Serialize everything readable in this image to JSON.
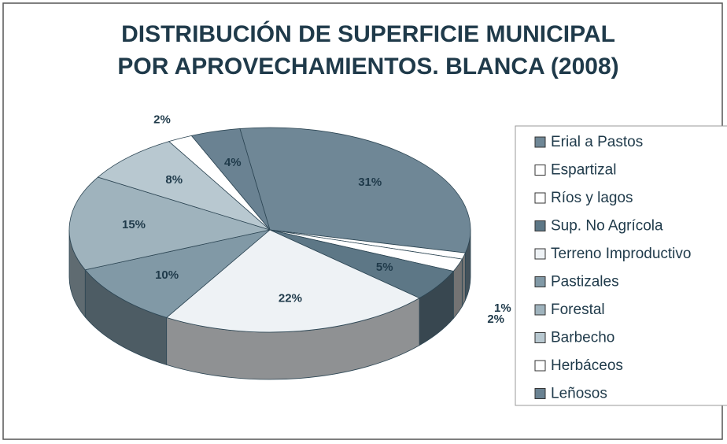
{
  "chart_data": {
    "type": "pie3d",
    "title": [
      "DISTRIBUCIÓN DE SUPERFICIE MUNICIPAL",
      "POR APROVECHAMIENTOS. BLANCA (2008)"
    ],
    "series": [
      {
        "name": "Erial a Pastos",
        "color": "#6f8796",
        "values": [
          31
        ],
        "value_labels": [
          "31%"
        ]
      },
      {
        "name": "Espartizal",
        "color": "#ffffff",
        "values": [
          1
        ],
        "value_labels": [
          "1%"
        ]
      },
      {
        "name": "Ríos y lagos",
        "color": "#ffffff",
        "values": [
          2
        ],
        "value_labels": [
          "2%"
        ]
      },
      {
        "name": "Sup. No Agrícola",
        "color": "#5d7786",
        "values": [
          5
        ],
        "value_labels": [
          "5%"
        ]
      },
      {
        "name": "Terreno Improductivo",
        "color": "#eef2f5",
        "values": [
          22
        ],
        "value_labels": [
          "22%"
        ]
      },
      {
        "name": "Pastizales",
        "color": "#8199a6",
        "values": [
          10
        ],
        "value_labels": [
          "10%"
        ]
      },
      {
        "name": "Forestal",
        "color": "#9fb3bd",
        "values": [
          15
        ],
        "value_labels": [
          "15%"
        ]
      },
      {
        "name": "Barbecho",
        "color": "#b8c8d0",
        "values": [
          8
        ],
        "value_labels": [
          "8%"
        ]
      },
      {
        "name": "Herbáceos",
        "color": "#ffffff",
        "values": [
          2
        ],
        "value_labels": [
          "2%"
        ]
      },
      {
        "name": "Leñosos",
        "color": "#6a8292",
        "values": [
          4
        ],
        "value_labels": [
          "4%"
        ]
      }
    ]
  }
}
